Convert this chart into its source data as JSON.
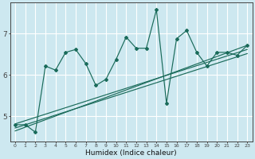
{
  "xlabel": "Humidex (Indice chaleur)",
  "background_color": "#cde8f0",
  "grid_color": "#ffffff",
  "line_color": "#1a6b5a",
  "xlim": [
    -0.5,
    23.5
  ],
  "ylim": [
    4.4,
    7.75
  ],
  "yticks": [
    5,
    6,
    7
  ],
  "xticks": [
    0,
    1,
    2,
    3,
    4,
    5,
    6,
    7,
    8,
    9,
    10,
    11,
    12,
    13,
    14,
    15,
    16,
    17,
    18,
    19,
    20,
    21,
    22,
    23
  ],
  "main_x": [
    0,
    1,
    2,
    3,
    4,
    5,
    6,
    7,
    8,
    9,
    10,
    11,
    12,
    13,
    14,
    15,
    16,
    17,
    18,
    19,
    20,
    21,
    22,
    23
  ],
  "main_y": [
    4.8,
    4.8,
    4.62,
    6.22,
    6.12,
    6.55,
    6.62,
    6.28,
    5.75,
    5.9,
    6.38,
    6.92,
    6.65,
    6.65,
    7.58,
    5.32,
    6.88,
    7.08,
    6.55,
    6.22,
    6.55,
    6.55,
    6.48,
    6.72
  ],
  "trend1_x": [
    0,
    23
  ],
  "trend1_y": [
    4.82,
    6.62
  ],
  "trend2_x": [
    0,
    23
  ],
  "trend2_y": [
    4.72,
    6.52
  ],
  "trend3_x": [
    0,
    23
  ],
  "trend3_y": [
    4.65,
    6.72
  ]
}
